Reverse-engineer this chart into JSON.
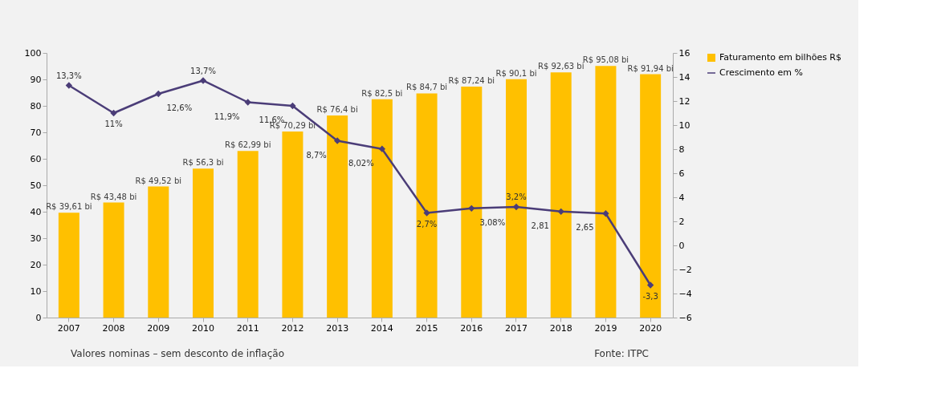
{
  "chart_data": {
    "type": "bar",
    "categories": [
      "2007",
      "2008",
      "2009",
      "2010",
      "2011",
      "2012",
      "2013",
      "2014",
      "2015",
      "2016",
      "2017",
      "2018",
      "2019",
      "2020"
    ],
    "series": [
      {
        "name": "Faturamento em bilhões R$",
        "color": "#ffc000",
        "values": [
          39.61,
          43.48,
          49.52,
          56.3,
          62.99,
          70.29,
          76.4,
          82.5,
          84.7,
          87.24,
          90.1,
          92.63,
          95.08,
          91.94
        ],
        "value_labels": [
          "R$ 39,61 bi",
          "R$ 43,48 bi",
          "R$ 49,52 bi",
          "R$ 56,3 bi",
          "R$ 62,99 bi",
          "R$ 70,29 bi",
          "R$ 76,4 bi",
          "R$ 82,5 bi",
          "R$ 84,7 bi",
          "R$ 87,24 bi",
          "R$ 90,1 bi",
          "R$ 92,63 bi",
          "R$ 95,08 bi",
          "R$ 91,94 bi"
        ]
      },
      {
        "name": "Crescimento em %",
        "type": "line",
        "axis": "y2",
        "color": "#4b3d78",
        "marker": "diamond",
        "values": [
          13.3,
          11,
          12.6,
          13.7,
          11.9,
          11.6,
          8.7,
          8.02,
          2.7,
          3.08,
          3.2,
          2.81,
          2.65,
          -3.3
        ],
        "value_labels": [
          "13,3%",
          "11%",
          "12,6%",
          "13,7%",
          "11,9%",
          "11,6%",
          "8,7%",
          "8,02%",
          "2,7%",
          "3,08%",
          "3,2%",
          "2,81",
          "2,65",
          "-3,3"
        ]
      }
    ],
    "ylim": [
      0,
      100
    ],
    "yticks": [
      0,
      10,
      20,
      30,
      40,
      50,
      60,
      70,
      80,
      90,
      100
    ],
    "y2lim": [
      -6,
      16
    ],
    "y2ticks": [
      -6,
      -4,
      -2,
      0,
      2,
      4,
      6,
      8,
      10,
      12,
      14,
      16
    ],
    "grid": false,
    "legend": "right",
    "annotations": [
      "Valores nominas – sem desconto de inflação",
      "Fonte: ITPC"
    ]
  }
}
